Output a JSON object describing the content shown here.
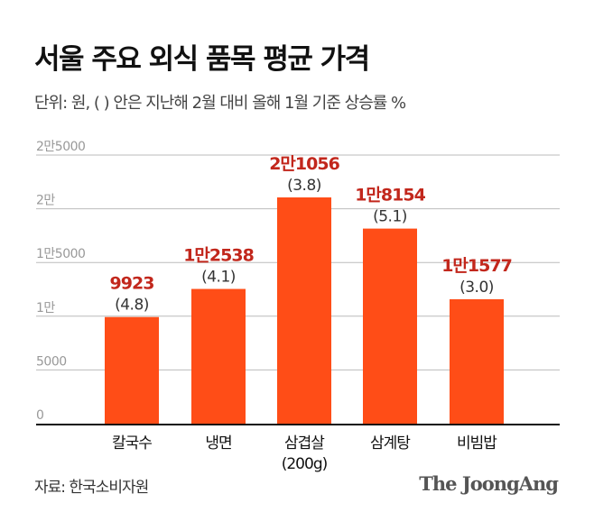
{
  "title": "서울 주요 외식 품목 평균 가격",
  "subtitle": "단위: 원, ( ) 안은 지난해 2월 대비 올해 1월 기준 상승률 %",
  "source": "자료: 한국소비자원",
  "logo": "The JoongAng",
  "colors": {
    "bar": "#ff4d17",
    "value_label": "#c2271c",
    "axis": "#111111",
    "grid": "#bbbbbb"
  },
  "chart_data": {
    "type": "bar",
    "categories": [
      "칼국수",
      "냉면",
      "삼겹살\n(200g)",
      "삼계탕",
      "비빔밥"
    ],
    "values": [
      9923,
      12538,
      21056,
      18154,
      11577
    ],
    "value_labels": [
      "9923",
      "1만2538",
      "2만1056",
      "1만8154",
      "1만1577"
    ],
    "change_labels": [
      "(4.8)",
      "(4.1)",
      "(3.8)",
      "(5.1)",
      "(3.0)"
    ],
    "yticks": [
      0,
      5000,
      10000,
      15000,
      20000,
      25000
    ],
    "ytick_labels": [
      "0",
      "5000",
      "1만",
      "1만5000",
      "2만",
      "2만5000"
    ],
    "ylim": [
      0,
      25000
    ],
    "grid": true
  }
}
